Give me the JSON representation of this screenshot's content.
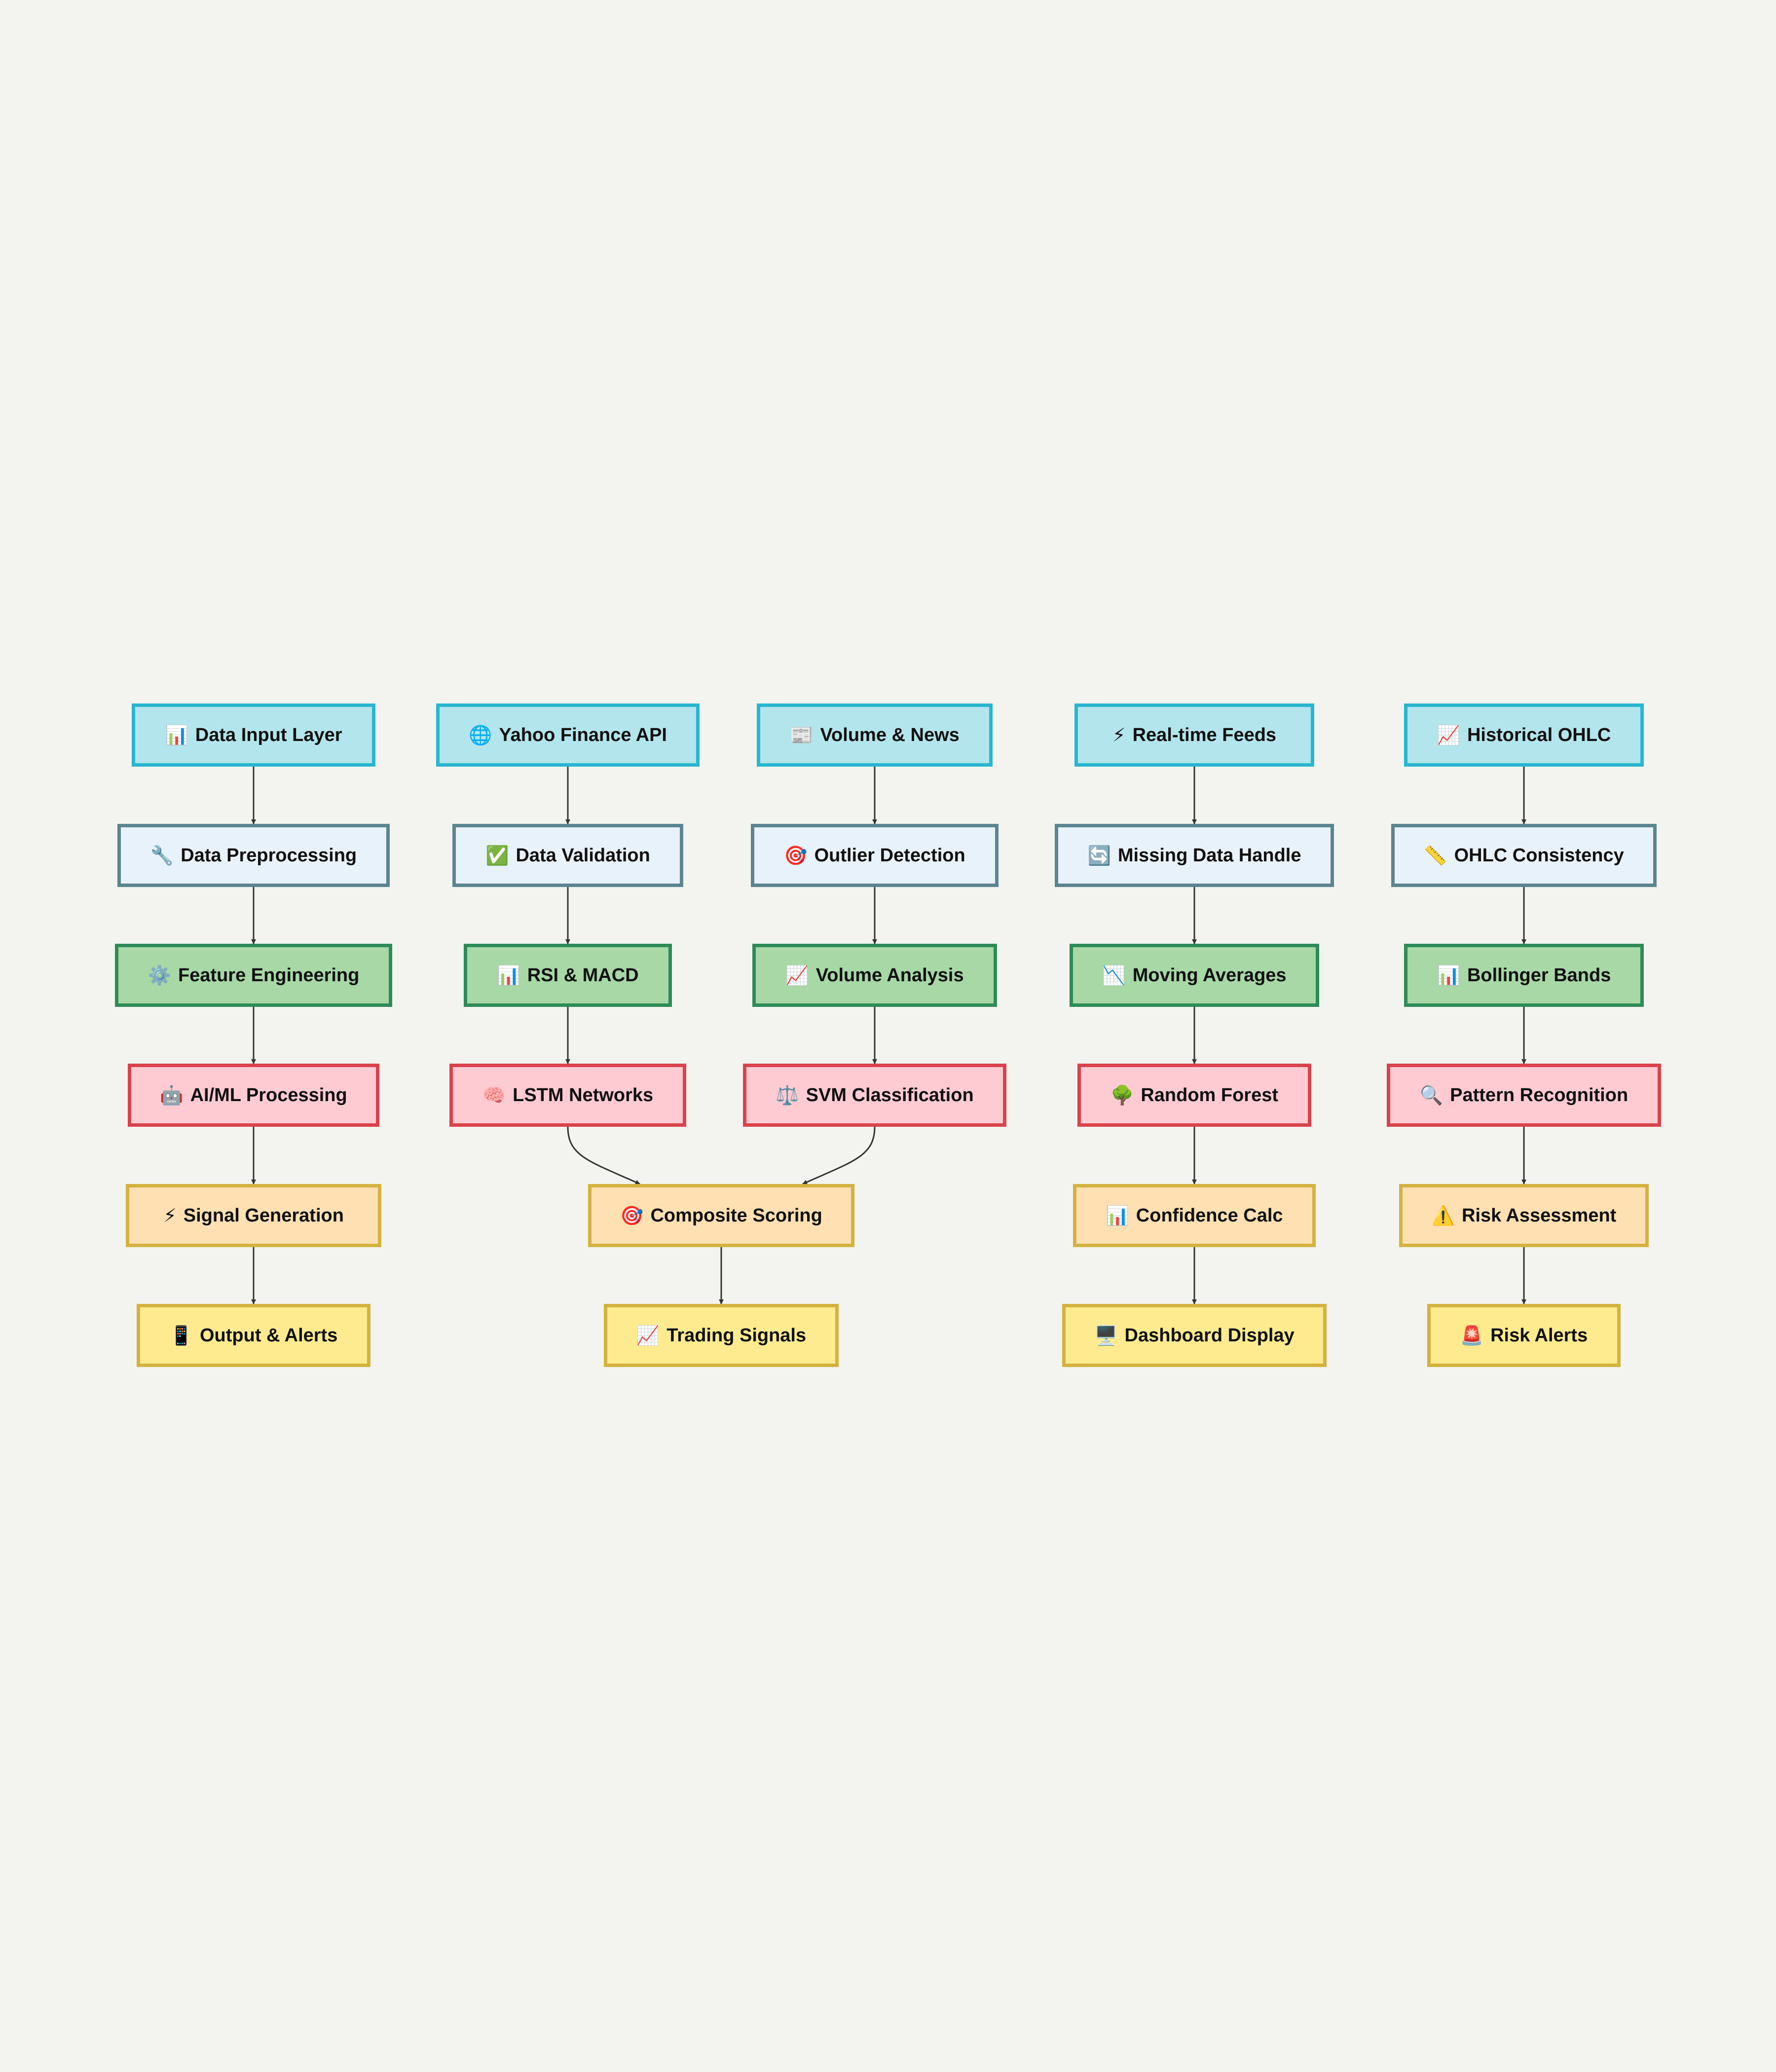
{
  "colors": {
    "background": "#f3f4ef",
    "edge": "#333333"
  },
  "nodes": [
    {
      "id": "n1",
      "icon": "📊",
      "label": "Data Input Layer",
      "style": "input"
    },
    {
      "id": "n2",
      "icon": "🌐",
      "label": "Yahoo Finance API",
      "style": "input"
    },
    {
      "id": "n3",
      "icon": "📰",
      "label": "Volume & News",
      "style": "input"
    },
    {
      "id": "n4",
      "icon": "⚡",
      "label": "Real-time Feeds",
      "style": "input"
    },
    {
      "id": "n5",
      "icon": "📈",
      "label": "Historical OHLC",
      "style": "input"
    },
    {
      "id": "n6",
      "icon": "🔧",
      "label": "Data Preprocessing",
      "style": "prep"
    },
    {
      "id": "n7",
      "icon": "✅",
      "label": "Data Validation",
      "style": "prep"
    },
    {
      "id": "n8",
      "icon": "🎯",
      "label": "Outlier Detection",
      "style": "prep"
    },
    {
      "id": "n9",
      "icon": "🔄",
      "label": "Missing Data Handle",
      "style": "prep"
    },
    {
      "id": "n10",
      "icon": "📏",
      "label": "OHLC Consistency",
      "style": "prep"
    },
    {
      "id": "n11",
      "icon": "⚙️",
      "label": "Feature Engineering",
      "style": "feature"
    },
    {
      "id": "n12",
      "icon": "📊",
      "label": "RSI & MACD",
      "style": "feature"
    },
    {
      "id": "n13",
      "icon": "📈",
      "label": "Volume Analysis",
      "style": "feature"
    },
    {
      "id": "n14",
      "icon": "📉",
      "label": "Moving Averages",
      "style": "feature"
    },
    {
      "id": "n15",
      "icon": "📊",
      "label": "Bollinger Bands",
      "style": "feature"
    },
    {
      "id": "n16",
      "icon": "🤖",
      "label": "AI/ML Processing",
      "style": "ml"
    },
    {
      "id": "n17",
      "icon": "🧠",
      "label": "LSTM Networks",
      "style": "ml"
    },
    {
      "id": "n18",
      "icon": "⚖️",
      "label": "SVM Classification",
      "style": "ml"
    },
    {
      "id": "n19",
      "icon": "🌳",
      "label": "Random Forest",
      "style": "ml"
    },
    {
      "id": "n20",
      "icon": "🔍",
      "label": "Pattern Recognition",
      "style": "ml"
    },
    {
      "id": "n21",
      "icon": "⚡",
      "label": "Signal Generation",
      "style": "signal"
    },
    {
      "id": "n22",
      "icon": "🎯",
      "label": "Composite Scoring",
      "style": "signal"
    },
    {
      "id": "n23",
      "icon": "📊",
      "label": "Confidence Calc",
      "style": "signal"
    },
    {
      "id": "n24",
      "icon": "⚠️",
      "label": "Risk Assessment",
      "style": "signal"
    },
    {
      "id": "n25",
      "icon": "📱",
      "label": "Output & Alerts",
      "style": "output"
    },
    {
      "id": "n26",
      "icon": "📈",
      "label": "Trading Signals",
      "style": "output"
    },
    {
      "id": "n27",
      "icon": "🖥️",
      "label": "Dashboard Display",
      "style": "output"
    },
    {
      "id": "n28",
      "icon": "🚨",
      "label": "Risk Alerts",
      "style": "output"
    }
  ],
  "edges": [
    {
      "from": "n1",
      "to": "n6"
    },
    {
      "from": "n2",
      "to": "n7"
    },
    {
      "from": "n3",
      "to": "n8"
    },
    {
      "from": "n4",
      "to": "n9"
    },
    {
      "from": "n5",
      "to": "n10"
    },
    {
      "from": "n6",
      "to": "n11"
    },
    {
      "from": "n7",
      "to": "n12"
    },
    {
      "from": "n8",
      "to": "n13"
    },
    {
      "from": "n9",
      "to": "n14"
    },
    {
      "from": "n10",
      "to": "n15"
    },
    {
      "from": "n11",
      "to": "n16"
    },
    {
      "from": "n12",
      "to": "n17"
    },
    {
      "from": "n13",
      "to": "n18"
    },
    {
      "from": "n14",
      "to": "n19"
    },
    {
      "from": "n15",
      "to": "n20"
    },
    {
      "from": "n16",
      "to": "n21"
    },
    {
      "from": "n17",
      "to": "n22"
    },
    {
      "from": "n18",
      "to": "n22"
    },
    {
      "from": "n19",
      "to": "n23"
    },
    {
      "from": "n20",
      "to": "n24"
    },
    {
      "from": "n21",
      "to": "n25"
    },
    {
      "from": "n22",
      "to": "n26"
    },
    {
      "from": "n23",
      "to": "n27"
    },
    {
      "from": "n24",
      "to": "n28"
    }
  ]
}
